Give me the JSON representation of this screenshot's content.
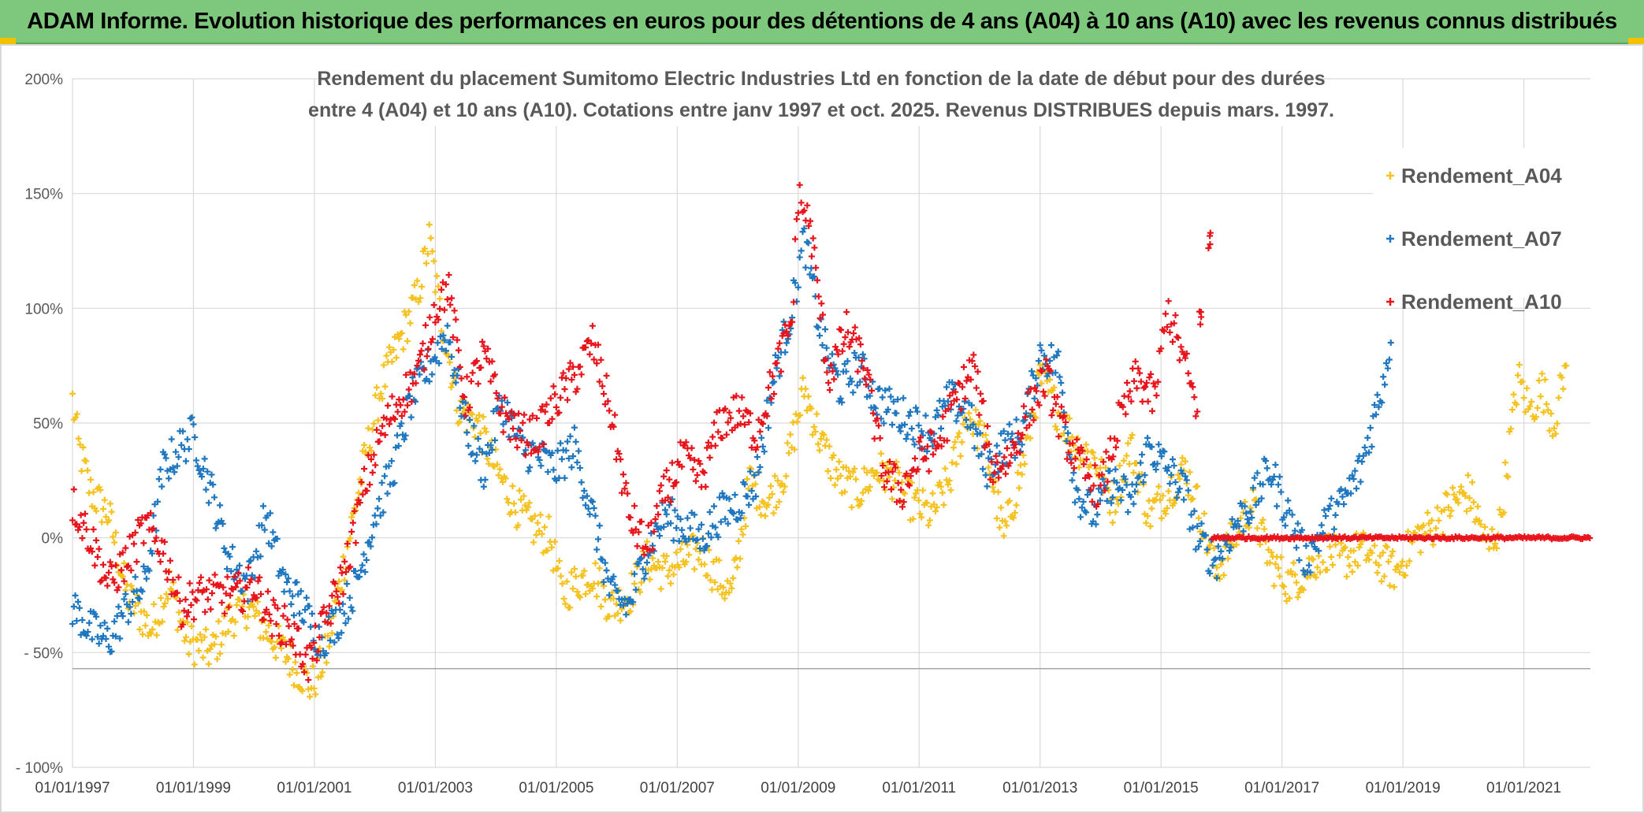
{
  "banner": {
    "title": "ADAM Informe. Evolution historique des performances en euros pour des détentions de 4 ans (A04) à 10 ans (A10) avec les revenus connus distribués"
  },
  "colors": {
    "banner_bg": "#7dc87d",
    "A04": "#f5c220",
    "A07": "#1f77c0",
    "A10": "#e8141c",
    "grid": "#d9d9d9",
    "text": "#595959"
  },
  "chart_data": {
    "type": "scatter",
    "title_lines": [
      "Rendement du placement Sumitomo Electric Industries Ltd en fonction de la date de début pour des durées",
      "entre 4 (A04) et 10 ans (A10). Cotations entre janv 1997 et oct. 2025. Revenus DISTRIBUES depuis mars. 1997."
    ],
    "xlabel": "",
    "ylabel": "",
    "xlim": [
      1997.0,
      2022.1
    ],
    "ylim": [
      -100,
      200
    ],
    "y_ticks": [
      {
        "value": 200,
        "label": "200%"
      },
      {
        "value": 150,
        "label": "150%"
      },
      {
        "value": 100,
        "label": "100%"
      },
      {
        "value": 50,
        "label": "50%"
      },
      {
        "value": 0,
        "label": "0%"
      },
      {
        "value": -50,
        "label": "- 50%"
      },
      {
        "value": -100,
        "label": "- 100%"
      }
    ],
    "x_ticks": [
      {
        "value": 1997,
        "label": "01/01/1997"
      },
      {
        "value": 1999,
        "label": "01/01/1999"
      },
      {
        "value": 2001,
        "label": "01/01/2001"
      },
      {
        "value": 2003,
        "label": "01/01/2003"
      },
      {
        "value": 2005,
        "label": "01/01/2005"
      },
      {
        "value": 2007,
        "label": "01/01/2007"
      },
      {
        "value": 2009,
        "label": "01/01/2009"
      },
      {
        "value": 2011,
        "label": "01/01/2011"
      },
      {
        "value": 2013,
        "label": "01/01/2013"
      },
      {
        "value": 2015,
        "label": "01/01/2015"
      },
      {
        "value": 2017,
        "label": "01/01/2017"
      },
      {
        "value": 2019,
        "label": "01/01/2019"
      },
      {
        "value": 2021,
        "label": "01/01/2021"
      }
    ],
    "reference_line": -57,
    "legend": [
      "Rendement_A04",
      "Rendement_A07",
      "Rendement_A10"
    ],
    "legend_position": "right",
    "marker": "+",
    "series": [
      {
        "name": "Rendement_A04",
        "x": [
          1997.0,
          1997.1,
          1997.3,
          1997.6,
          1997.9,
          1998.3,
          1998.6,
          1998.9,
          1999.3,
          1999.6,
          1999.9,
          2000.2,
          2000.5,
          2000.8,
          2000.95,
          2001.2,
          2001.5,
          2001.8,
          2002.1,
          2002.4,
          2002.7,
          2002.9,
          2003.1,
          2003.4,
          2003.7,
          2004.0,
          2004.3,
          2004.6,
          2004.9,
          2005.1,
          2005.3,
          2005.6,
          2005.9,
          2006.2,
          2006.5,
          2006.8,
          2007.1,
          2007.4,
          2007.6,
          2007.9,
          2008.2,
          2008.5,
          2008.8,
          2009.1,
          2009.4,
          2009.7,
          2010.0,
          2010.3,
          2010.6,
          2010.9,
          2011.2,
          2011.5,
          2011.8,
          2012.1,
          2012.4,
          2012.7,
          2013.0,
          2013.3,
          2013.6,
          2013.9,
          2014.2,
          2014.5,
          2014.8,
          2015.1,
          2015.4,
          2015.6,
          2015.9,
          2016.2,
          2016.5,
          2016.8,
          2017.1,
          2017.4,
          2017.7,
          2018.0,
          2018.3,
          2018.6,
          2018.9,
          2019.2,
          2019.5,
          2019.8,
          2020.1,
          2020.4,
          2020.6,
          2020.9,
          2021.1,
          2021.3,
          2021.5,
          2021.7
        ],
        "y": [
          60,
          40,
          20,
          10,
          -25,
          -40,
          -20,
          -45,
          -50,
          -35,
          -30,
          -40,
          -50,
          -60,
          -65,
          -50,
          -10,
          30,
          65,
          85,
          105,
          130,
          95,
          55,
          50,
          30,
          15,
          5,
          0,
          -25,
          -20,
          -15,
          -30,
          -25,
          -10,
          -15,
          -10,
          -5,
          -15,
          -25,
          25,
          15,
          30,
          65,
          40,
          25,
          20,
          30,
          25,
          15,
          10,
          25,
          55,
          40,
          0,
          30,
          70,
          55,
          40,
          35,
          15,
          40,
          10,
          20,
          30,
          15,
          -15,
          0,
          15,
          -10,
          -20,
          -15,
          -5,
          -10,
          -5,
          -10,
          -15,
          0,
          5,
          15,
          20,
          -5,
          5,
          70,
          55,
          65,
          50,
          75
        ]
      },
      {
        "name": "Rendement_A07",
        "x": [
          1997.0,
          1997.3,
          1997.6,
          1997.9,
          1998.2,
          1998.5,
          1998.8,
          1999.0,
          1999.3,
          1999.6,
          1999.9,
          2000.2,
          2000.5,
          2000.8,
          2001.1,
          2001.4,
          2001.7,
          2002.0,
          2002.3,
          2002.6,
          2002.9,
          2003.2,
          2003.5,
          2003.8,
          2004.1,
          2004.4,
          2004.7,
          2005.0,
          2005.3,
          2005.6,
          2005.9,
          2006.2,
          2006.5,
          2006.8,
          2007.1,
          2007.4,
          2007.7,
          2008.0,
          2008.3,
          2008.6,
          2008.9,
          2009.1,
          2009.4,
          2009.7,
          2010.0,
          2010.3,
          2010.6,
          2010.9,
          2011.2,
          2011.5,
          2011.8,
          2012.1,
          2012.4,
          2012.7,
          2013.0,
          2013.3,
          2013.6,
          2013.9,
          2014.2,
          2014.5,
          2014.8,
          2015.1,
          2015.4,
          2015.6,
          2015.9,
          2016.2,
          2016.5,
          2016.8,
          2017.1,
          2017.4,
          2017.7,
          2018.0,
          2018.3,
          2018.6,
          2018.8
        ],
        "y": [
          -30,
          -40,
          -45,
          -30,
          -20,
          30,
          40,
          45,
          20,
          -10,
          -20,
          10,
          -20,
          -30,
          -45,
          -35,
          -20,
          10,
          30,
          60,
          75,
          90,
          50,
          30,
          60,
          40,
          35,
          30,
          40,
          10,
          -25,
          -30,
          -5,
          10,
          5,
          0,
          10,
          15,
          25,
          70,
          100,
          130,
          85,
          65,
          75,
          60,
          55,
          50,
          45,
          60,
          55,
          30,
          40,
          45,
          80,
          75,
          20,
          10,
          25,
          15,
          40,
          30,
          20,
          0,
          -10,
          5,
          15,
          30,
          10,
          -10,
          5,
          15,
          30,
          60,
          85
        ]
      },
      {
        "name": "Rendement_A10",
        "x": [
          1997.0,
          1997.3,
          1997.6,
          1997.9,
          1998.2,
          1998.5,
          1998.8,
          1999.1,
          1999.4,
          1999.7,
          2000.0,
          2000.3,
          2000.6,
          2000.9,
          2001.2,
          2001.5,
          2001.8,
          2002.1,
          2002.4,
          2002.7,
          2003.0,
          2003.2,
          2003.5,
          2003.8,
          2004.1,
          2004.4,
          2004.7,
          2005.0,
          2005.3,
          2005.6,
          2005.9,
          2006.2,
          2006.5,
          2006.8,
          2007.1,
          2007.4,
          2007.7,
          2008.0,
          2008.3,
          2008.6,
          2008.9,
          2009.0,
          2009.2,
          2009.5,
          2009.8,
          2010.1,
          2010.4,
          2010.7,
          2011.0,
          2011.3,
          2011.6,
          2011.9,
          2012.2,
          2012.5,
          2012.8,
          2013.1,
          2013.4,
          2013.7,
          2014.0,
          2014.3,
          2014.6,
          2014.9,
          2015.1,
          2015.4,
          2015.6
        ],
        "y": [
          15,
          0,
          -20,
          -10,
          5,
          -5,
          -30,
          -25,
          -25,
          -25,
          -20,
          -35,
          -40,
          -55,
          -35,
          -15,
          20,
          45,
          60,
          70,
          100,
          110,
          60,
          80,
          55,
          45,
          45,
          60,
          70,
          85,
          55,
          10,
          -5,
          20,
          35,
          25,
          50,
          55,
          45,
          70,
          95,
          150,
          135,
          70,
          90,
          75,
          30,
          20,
          35,
          40,
          60,
          75,
          30,
          35,
          55,
          70,
          45,
          30,
          20,
          50,
          70,
          60,
          100,
          75,
          55
        ]
      }
    ],
    "flat_series": {
      "name": "Rendement_A10",
      "x_start": 2015.85,
      "x_end": 2022.1,
      "y": 0
    },
    "isolated_points": [
      {
        "series": "Rendement_A10",
        "x": 2015.8,
        "y": 130
      },
      {
        "series": "Rendement_A10",
        "x": 2015.65,
        "y": 95
      }
    ]
  }
}
